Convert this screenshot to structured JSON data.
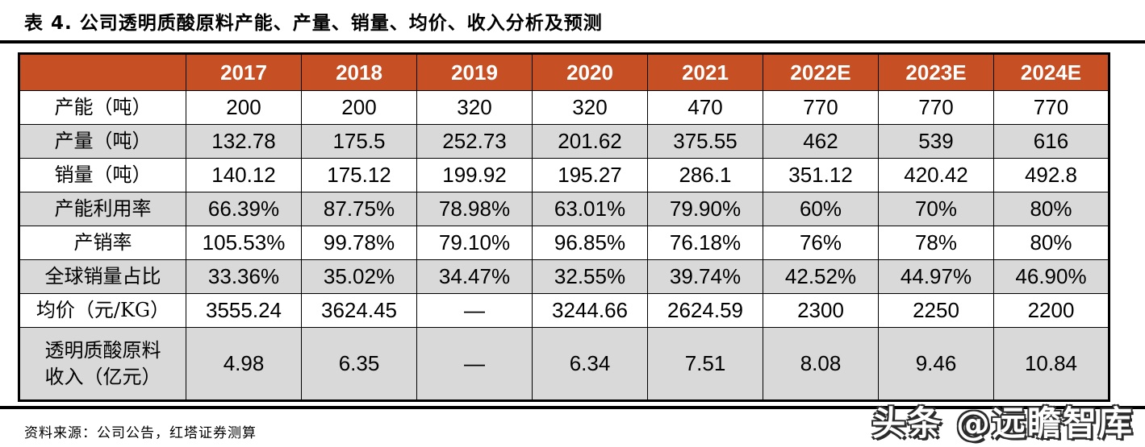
{
  "page": {
    "title": "表 4. 公司透明质酸原料产能、产量、销量、均价、收入分析及预测",
    "source_note": "资料来源：公司公告，红塔证券测算",
    "watermark": "头条 @远瞻智库"
  },
  "colors": {
    "header_bg": "#C64F24",
    "header_text": "#FFFFFF",
    "shaded_row_bg": "#D9D9D9",
    "border": "#000000"
  },
  "chart_data": {
    "type": "table",
    "title": "公司透明质酸原料产能、产量、销量、均价、收入分析及预测",
    "columns": [
      "",
      "2017",
      "2018",
      "2019",
      "2020",
      "2021",
      "2022E",
      "2023E",
      "2024E"
    ],
    "rows": [
      {
        "label": "产能（吨）",
        "values": [
          "200",
          "200",
          "320",
          "320",
          "470",
          "770",
          "770",
          "770"
        ]
      },
      {
        "label": "产量（吨）",
        "values": [
          "132.78",
          "175.5",
          "252.73",
          "201.62",
          "375.55",
          "462",
          "539",
          "616"
        ]
      },
      {
        "label": "销量（吨）",
        "values": [
          "140.12",
          "175.12",
          "199.92",
          "195.27",
          "286.1",
          "351.12",
          "420.42",
          "492.8"
        ]
      },
      {
        "label": "产能利用率",
        "values": [
          "66.39%",
          "87.75%",
          "78.98%",
          "63.01%",
          "79.90%",
          "60%",
          "70%",
          "80%"
        ]
      },
      {
        "label": "产销率",
        "values": [
          "105.53%",
          "99.78%",
          "79.10%",
          "96.85%",
          "76.18%",
          "76%",
          "78%",
          "80%"
        ]
      },
      {
        "label": "全球销量占比",
        "values": [
          "33.36%",
          "35.02%",
          "34.47%",
          "32.55%",
          "39.74%",
          "42.52%",
          "44.97%",
          "46.90%"
        ]
      },
      {
        "label": "均价（元/KG）",
        "values": [
          "3555.24",
          "3624.45",
          "—",
          "3244.66",
          "2624.59",
          "2300",
          "2250",
          "2200"
        ]
      },
      {
        "label": "透明质酸原料\n收入（亿元）",
        "values": [
          "4.98",
          "6.35",
          "—",
          "6.34",
          "7.51",
          "8.08",
          "9.46",
          "10.84"
        ]
      }
    ]
  }
}
